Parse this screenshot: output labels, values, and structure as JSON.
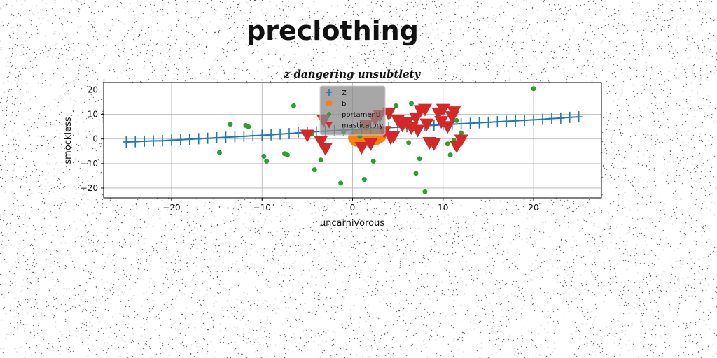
{
  "figure_title": "preclothing",
  "chart_data": {
    "type": "scatter",
    "title": "z dangering unsubtlety",
    "xlabel": "uncarnivorous",
    "ylabel": "smockless",
    "xlim": [
      -27.5,
      27.5
    ],
    "ylim": [
      -24,
      23
    ],
    "xticks": [
      -20,
      -10,
      0,
      10,
      20
    ],
    "yticks": [
      -20,
      -10,
      0,
      10,
      20
    ],
    "grid": true,
    "legend_position": "top-center",
    "series": [
      {
        "name": "Z",
        "kind": "line-with-plus-markers",
        "color": "#1f77b4",
        "x": [
          -25,
          -24,
          -23,
          -22,
          -21,
          -20,
          -19,
          -18,
          -17,
          -16,
          -15,
          -14,
          -13,
          -12,
          -11,
          -10,
          -9,
          -8,
          -7,
          -6,
          -5,
          -4,
          -3,
          -2,
          -1,
          0,
          1,
          2,
          3,
          4,
          5,
          6,
          7,
          8,
          9,
          10,
          11,
          12,
          13,
          14,
          15,
          16,
          17,
          18,
          19,
          20,
          21,
          22,
          23,
          24,
          25
        ],
        "y": [
          -1.2,
          -1.1,
          -0.9,
          -0.8,
          -0.7,
          -0.5,
          -0.3,
          -0.1,
          0.1,
          0.3,
          0.5,
          0.7,
          0.9,
          1.1,
          1.3,
          1.5,
          1.7,
          2.0,
          2.2,
          2.5,
          2.7,
          3.0,
          3.2,
          3.4,
          3.6,
          3.8,
          4.0,
          4.2,
          4.4,
          4.6,
          4.8,
          5.0,
          5.2,
          5.4,
          5.6,
          5.8,
          6.0,
          6.2,
          6.4,
          6.6,
          6.8,
          7.0,
          7.2,
          7.4,
          7.6,
          7.8,
          8.0,
          8.3,
          8.5,
          8.8,
          9.0
        ]
      },
      {
        "name": "b",
        "kind": "circle-large",
        "color": "#ff7f0e",
        "x": [
          0.2,
          0.5,
          0.8,
          1.0,
          1.3,
          1.6,
          1.9,
          2.2,
          2.5,
          2.8,
          3.0,
          0.4,
          1.1,
          1.8,
          2.4
        ],
        "y": [
          0.5,
          1.2,
          -0.3,
          1.8,
          0.2,
          2.0,
          0.8,
          1.5,
          -0.1,
          0.6,
          1.0,
          -0.5,
          2.4,
          -0.6,
          2.2
        ]
      },
      {
        "name": "portamenti",
        "kind": "circle",
        "color": "#2ca02c",
        "x": [
          20,
          -14.7,
          -9.5,
          -9.8,
          -7.5,
          -7.2,
          -4.2,
          -3.5,
          -4.5,
          -1.3,
          1.3,
          2.3,
          4.8,
          6.5,
          7.0,
          7.4,
          8.0,
          10.8,
          11.2,
          12.0,
          -11.8,
          -11.5,
          -13.5,
          -6.5,
          -1.0,
          6.2,
          10.5,
          11.5,
          4.0,
          0.8
        ],
        "y": [
          20.5,
          -5.5,
          -9.0,
          -7.0,
          -6.0,
          -6.5,
          -12.5,
          -8.5,
          2.0,
          -18.0,
          -16.5,
          -9.0,
          13.5,
          14.5,
          -14.0,
          -8.0,
          -21.5,
          -6.5,
          -0.5,
          2.5,
          5.5,
          5.0,
          6.0,
          13.5,
          3.0,
          -1.5,
          -2.0,
          7.5,
          9.0,
          1.0
        ]
      },
      {
        "name": "masticatory",
        "kind": "triangle-down",
        "color": "#d62728",
        "x": [
          -5,
          -3.5,
          -3,
          -3.2,
          1,
          2,
          3,
          4,
          5,
          5.5,
          6,
          7,
          7.5,
          8,
          8.5,
          9,
          9.5,
          10,
          10.5,
          11,
          11.5,
          12,
          1.5,
          4.5,
          3.5,
          6.5,
          8.2,
          9.8,
          2.5,
          11.2,
          4.2,
          7.2
        ],
        "y": [
          1.5,
          -1.0,
          -4.0,
          7.5,
          -3.5,
          -2.0,
          9.5,
          10.5,
          7.5,
          5.5,
          6.5,
          8.5,
          11.5,
          12.0,
          -1.5,
          -2.0,
          10.5,
          12.0,
          5.0,
          9.0,
          -3.0,
          -0.5,
          5.5,
          1.0,
          3.0,
          4.5,
          6.0,
          7.0,
          8.0,
          11.0,
          0.5,
          3.5
        ]
      }
    ]
  }
}
